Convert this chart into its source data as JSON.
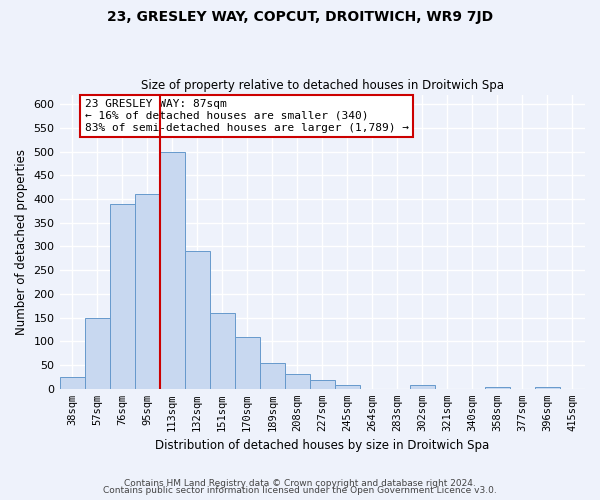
{
  "title": "23, GRESLEY WAY, COPCUT, DROITWICH, WR9 7JD",
  "subtitle": "Size of property relative to detached houses in Droitwich Spa",
  "xlabel": "Distribution of detached houses by size in Droitwich Spa",
  "ylabel": "Number of detached properties",
  "bar_color": "#c8d8f0",
  "bar_edge_color": "#6699cc",
  "categories": [
    "38sqm",
    "57sqm",
    "76sqm",
    "95sqm",
    "113sqm",
    "132sqm",
    "151sqm",
    "170sqm",
    "189sqm",
    "208sqm",
    "227sqm",
    "245sqm",
    "264sqm",
    "283sqm",
    "302sqm",
    "321sqm",
    "340sqm",
    "358sqm",
    "377sqm",
    "396sqm",
    "415sqm"
  ],
  "values": [
    25,
    150,
    390,
    410,
    500,
    290,
    160,
    110,
    55,
    32,
    19,
    9,
    0,
    0,
    9,
    0,
    0,
    4,
    0,
    4,
    0
  ],
  "ylim": [
    0,
    620
  ],
  "yticks": [
    0,
    50,
    100,
    150,
    200,
    250,
    300,
    350,
    400,
    450,
    500,
    550,
    600
  ],
  "vline_x": 3.5,
  "annotation_line1": "23 GRESLEY WAY: 87sqm",
  "annotation_line2": "← 16% of detached houses are smaller (340)",
  "annotation_line3": "83% of semi-detached houses are larger (1,789) →",
  "annotation_box_color": "white",
  "annotation_box_edge_color": "#cc0000",
  "footer_line1": "Contains HM Land Registry data © Crown copyright and database right 2024.",
  "footer_line2": "Contains public sector information licensed under the Open Government Licence v3.0.",
  "background_color": "#eef2fb"
}
